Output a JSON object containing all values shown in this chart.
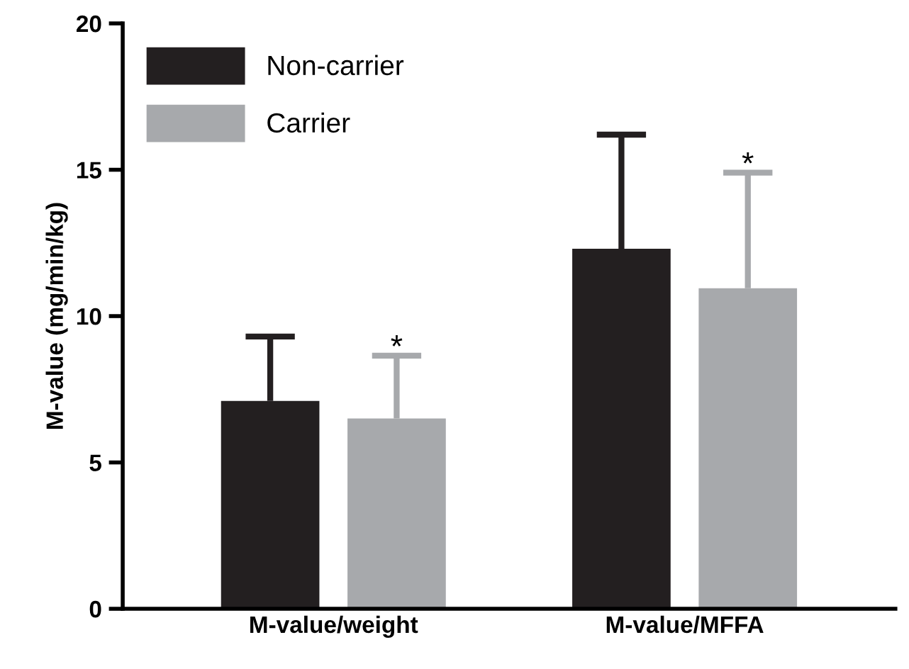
{
  "chart_data": {
    "type": "bar",
    "ylabel": "M-value (mg/min/kg)",
    "categories": [
      "M-value/weight",
      "M-value/MFFA"
    ],
    "series": [
      {
        "name": "Non-carrier",
        "color": "#231f20",
        "values": [
          7.1,
          12.3
        ],
        "errors": [
          [
            7.1,
            9.3
          ],
          [
            12.3,
            16.2
          ]
        ]
      },
      {
        "name": "Carrier",
        "color": "#a7a9ac",
        "values": [
          6.5,
          10.95
        ],
        "errors": [
          [
            6.5,
            8.65
          ],
          [
            10.95,
            14.9
          ]
        ]
      }
    ],
    "annotations": [
      "*",
      "*"
    ],
    "ylim": [
      0,
      20
    ],
    "yticks": [
      0,
      5,
      10,
      15,
      20
    ],
    "grid": false,
    "legend": "top left"
  }
}
